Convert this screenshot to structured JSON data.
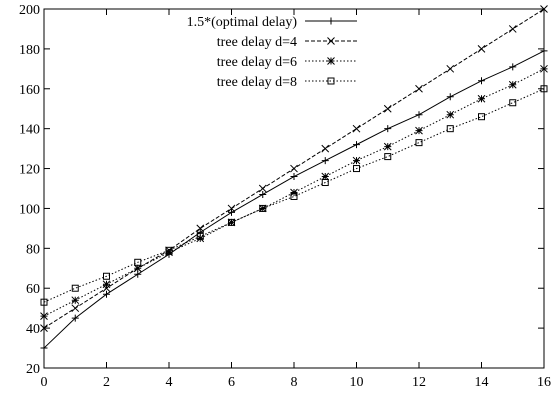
{
  "chart_data": {
    "type": "line",
    "title": "",
    "xlabel": "",
    "ylabel": "",
    "xlim": [
      0,
      16
    ],
    "ylim": [
      20,
      200
    ],
    "x_ticks": [
      "0",
      "2",
      "4",
      "6",
      "8",
      "10",
      "12",
      "14",
      "16"
    ],
    "y_ticks": [
      "20",
      "40",
      "60",
      "80",
      "100",
      "120",
      "140",
      "160",
      "180",
      "200"
    ],
    "grid": false,
    "legend_position": "top-left",
    "x": [
      0,
      1,
      2,
      3,
      4,
      5,
      6,
      7,
      8,
      9,
      10,
      11,
      12,
      13,
      14,
      15,
      16
    ],
    "series": [
      {
        "name": "1.5*(optimal delay)",
        "marker": "plus",
        "line": "solid",
        "values": [
          30,
          45,
          57,
          67,
          77,
          88,
          98,
          107,
          116,
          124,
          132,
          140,
          147,
          156,
          164,
          171,
          179
        ]
      },
      {
        "name": "tree delay d=4",
        "marker": "cross",
        "line": "dashed",
        "values": [
          40,
          50,
          60,
          70,
          79,
          90,
          100,
          110,
          120,
          130,
          140,
          150,
          160,
          170,
          180,
          190,
          200
        ]
      },
      {
        "name": "tree delay d=6",
        "marker": "star",
        "line": "dotted",
        "values": [
          46,
          54,
          62,
          70,
          78,
          85,
          93,
          100,
          108,
          116,
          124,
          131,
          139,
          147,
          155,
          162,
          170
        ]
      },
      {
        "name": "tree delay d=8",
        "marker": "square",
        "line": "dotted",
        "values": [
          53,
          60,
          66,
          73,
          79,
          86,
          93,
          100,
          106,
          113,
          120,
          126,
          133,
          140,
          146,
          153,
          160
        ]
      }
    ]
  }
}
